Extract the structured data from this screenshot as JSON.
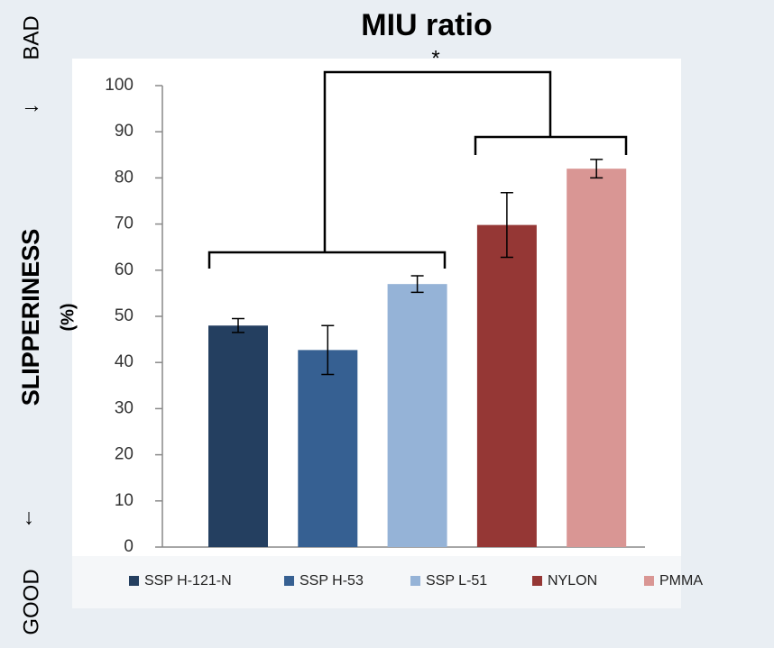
{
  "chart_data": {
    "type": "bar",
    "title": "MIU ratio",
    "y_label": "SLIPPERINESS",
    "y_unit_label": "(%)",
    "top_label": "BAD",
    "top_arrow": "→",
    "bottom_label": "GOOD",
    "bottom_arrow": "↓",
    "annotation": "*",
    "categories": [
      "SSP H-121-N",
      "SSP H-53",
      "SSP L-51",
      "NYLON",
      "PMMA"
    ],
    "values": [
      48,
      42.7,
      57,
      69.8,
      82
    ],
    "errors": [
      1.5,
      5.3,
      1.8,
      7,
      2
    ],
    "colors": [
      "#243f60",
      "#366092",
      "#95b3d7",
      "#953735",
      "#d99694"
    ],
    "ylim": [
      0,
      100
    ],
    "yticks": [
      0,
      10,
      20,
      30,
      40,
      50,
      60,
      70,
      80,
      90,
      100
    ],
    "grid": false
  }
}
